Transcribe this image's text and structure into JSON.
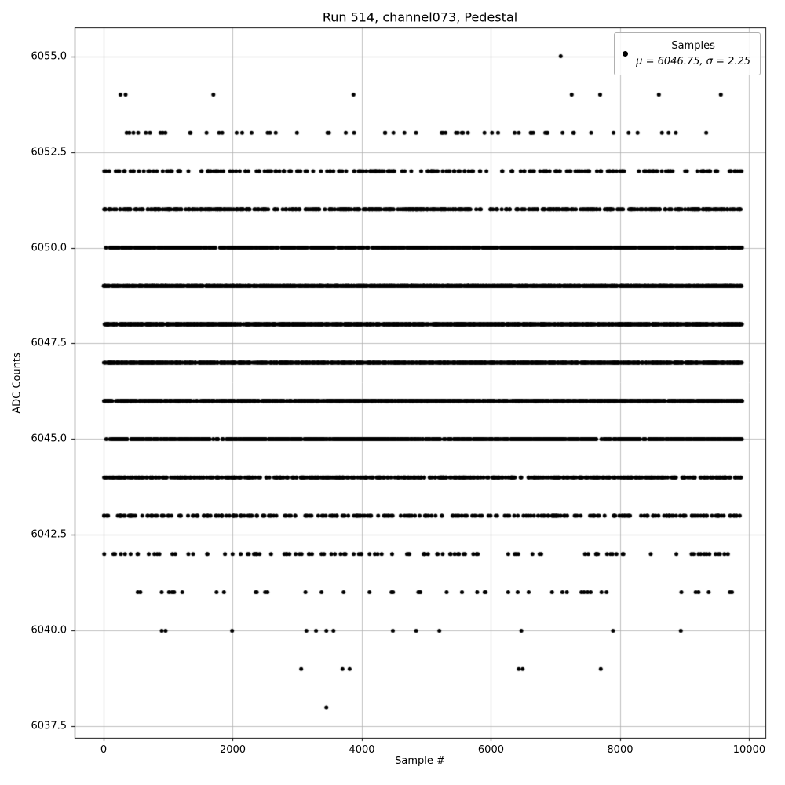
{
  "chart_data": {
    "type": "scatter",
    "title": "Run 514, channel073, Pedestal",
    "xlabel": "Sample #",
    "ylabel": "ADC Counts",
    "xlim": [
      -450,
      10250
    ],
    "ylim": [
      6037.2,
      6055.75
    ],
    "x_ticks": [
      0,
      2000,
      4000,
      6000,
      8000,
      10000
    ],
    "y_ticks": [
      6037.5,
      6040.0,
      6042.5,
      6045.0,
      6047.5,
      6050.0,
      6052.5,
      6055.0
    ],
    "grid": true,
    "grid_color": "#b0b0b0",
    "frame_color": "#000000",
    "marker": {
      "color": "#000000",
      "radius": 2.5
    },
    "legend_position": "upper right",
    "legend": {
      "series_label": "Samples",
      "stats_label": "μ = 6046.75, σ = 2.25"
    },
    "mu": 6046.75,
    "sigma": 2.25,
    "n_samples_approx": 9900,
    "x_range": [
      0,
      9890
    ],
    "levels": [
      {
        "y": 6041,
        "count": 45
      },
      {
        "y": 6042,
        "count": 110
      },
      {
        "y": 6043,
        "count": 260
      },
      {
        "y": 6044,
        "count": 520
      },
      {
        "y": 6045,
        "count": 820
      },
      {
        "y": 6046,
        "count": 1250
      },
      {
        "y": 6047,
        "count": 1500
      },
      {
        "y": 6048,
        "count": 1550
      },
      {
        "y": 6049,
        "count": 1350
      },
      {
        "y": 6050,
        "count": 900
      },
      {
        "y": 6051,
        "count": 500
      },
      {
        "y": 6052,
        "count": 230
      },
      {
        "y": 6053,
        "count": 60
      }
    ],
    "sparse_points": [
      {
        "y": 6055,
        "x": [
          7080
        ]
      },
      {
        "y": 6054,
        "x": [
          260,
          340,
          1700,
          3870,
          7250,
          7690,
          8600,
          9560
        ]
      },
      {
        "y": 6040,
        "x": [
          900,
          960,
          1990,
          3140,
          3290,
          3450,
          3560,
          4480,
          4840,
          5200,
          6470,
          7890,
          8940
        ]
      },
      {
        "y": 6039,
        "x": [
          3060,
          3700,
          3810,
          6430,
          6490,
          7700
        ]
      },
      {
        "y": 6038,
        "x": [
          3450
        ]
      }
    ]
  }
}
